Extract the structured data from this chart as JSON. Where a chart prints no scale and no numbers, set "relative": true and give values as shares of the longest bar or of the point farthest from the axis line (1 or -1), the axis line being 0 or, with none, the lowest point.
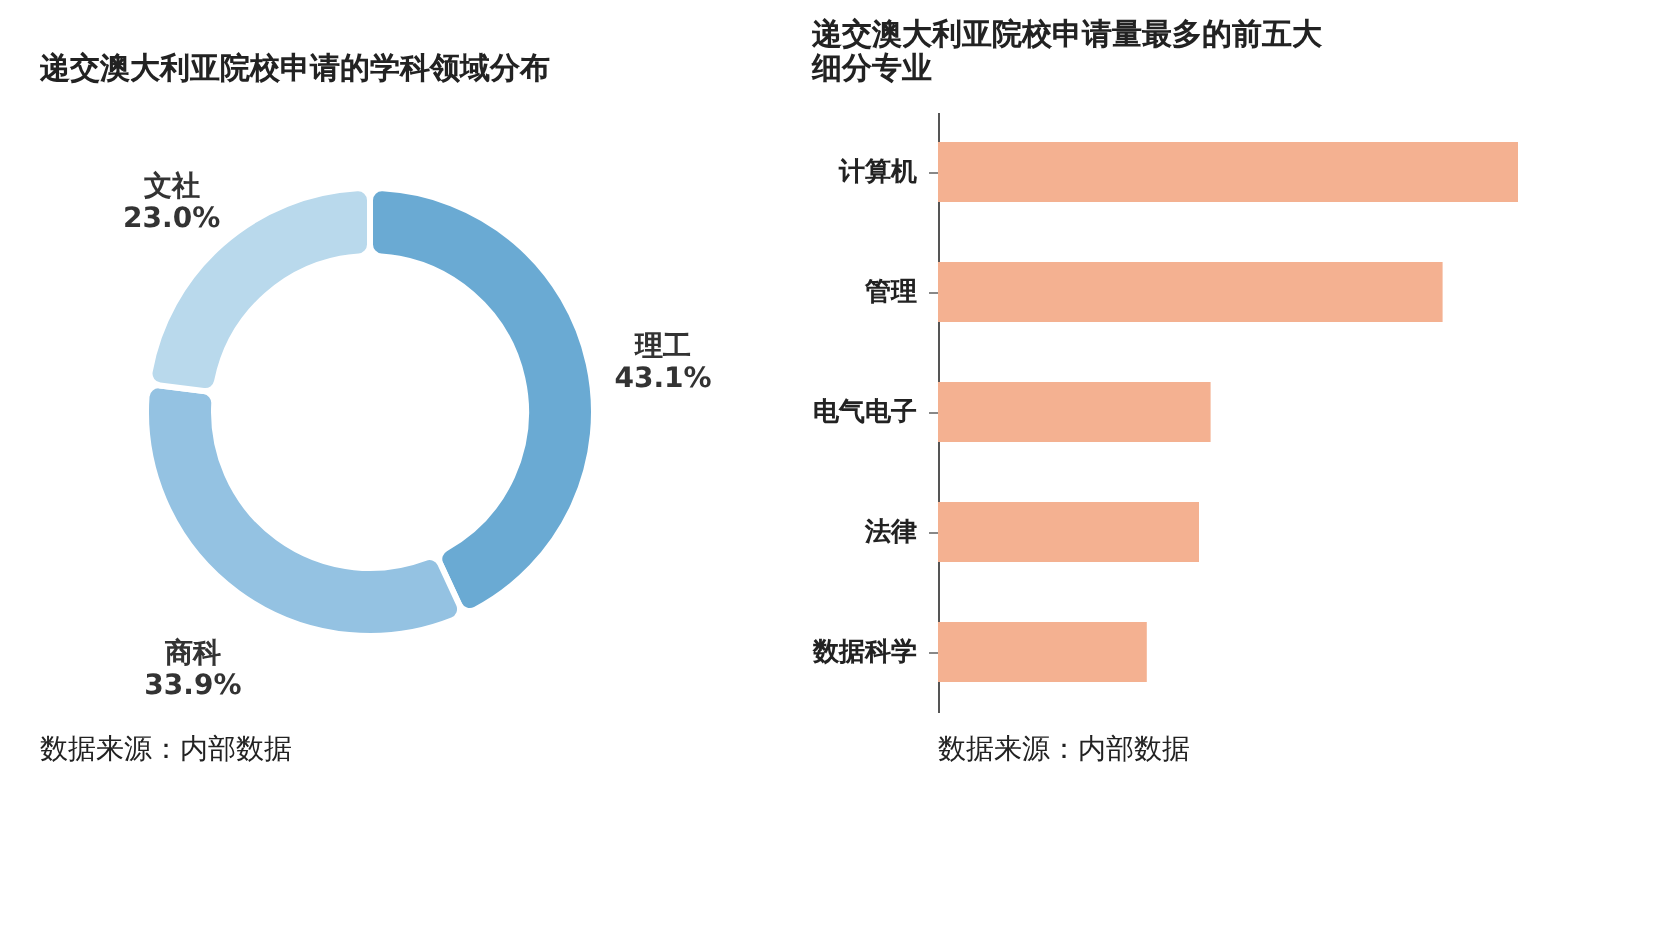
{
  "chart_data": [
    {
      "type": "donut",
      "title": "递交澳大利亚院校申请的学科领域分布",
      "categories": [
        "理工",
        "商科",
        "文社"
      ],
      "values": [
        43.1,
        33.9,
        23.0
      ],
      "value_labels": [
        "43.1%",
        "33.9%",
        "23.0%"
      ],
      "colors": [
        "#6aaad3",
        "#94c2e2",
        "#b9d9ec"
      ],
      "legend": false,
      "annotations": [
        "数据来源：内部数据"
      ]
    },
    {
      "type": "bar",
      "orientation": "horizontal",
      "relative": true,
      "title": "递交澳大利亚院校申请量最多的前五大细分专业",
      "categories": [
        "计算机",
        "管理",
        "电气电子",
        "法律",
        "数据科学"
      ],
      "values": [
        1,
        0.87,
        0.47,
        0.45,
        0.36
      ],
      "color": "#f4b191",
      "annotations": [
        "数据来源：内部数据"
      ]
    }
  ]
}
